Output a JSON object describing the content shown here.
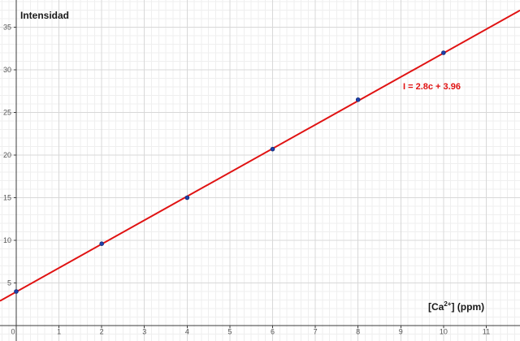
{
  "chart_data": {
    "type": "scatter",
    "title": "Intensidad",
    "ylabel": "Intensidad",
    "xlabel": "[Ca2+] (ppm)",
    "xlabel_parts": {
      "pre": "[Ca",
      "sup": "2+",
      "post": "] (ppm)"
    },
    "points": [
      {
        "x": 0,
        "y": 4.0
      },
      {
        "x": 2,
        "y": 9.6
      },
      {
        "x": 4,
        "y": 15.0
      },
      {
        "x": 6,
        "y": 20.7
      },
      {
        "x": 8,
        "y": 26.5
      },
      {
        "x": 10,
        "y": 32.0
      }
    ],
    "fit_line": {
      "slope": 2.8,
      "intercept": 3.96,
      "label": "I = 2.8c + 3.96"
    },
    "x_ticks": [
      0,
      1,
      2,
      3,
      4,
      5,
      6,
      7,
      8,
      9,
      10,
      11
    ],
    "y_ticks": [
      5,
      10,
      15,
      20,
      25,
      30,
      35
    ],
    "xlim": [
      -0.38,
      11.79
    ],
    "ylim": [
      -1.81,
      38.19
    ],
    "grid": "major+minor",
    "legend": "none",
    "colors": {
      "line": "#e01212",
      "points": "#1c3faa",
      "point_stroke": "#142c77",
      "axes": "#3b3b3b",
      "grid_major": "#d8d8d8",
      "grid_minor": "#efefef",
      "tick_text": "#555555"
    }
  }
}
